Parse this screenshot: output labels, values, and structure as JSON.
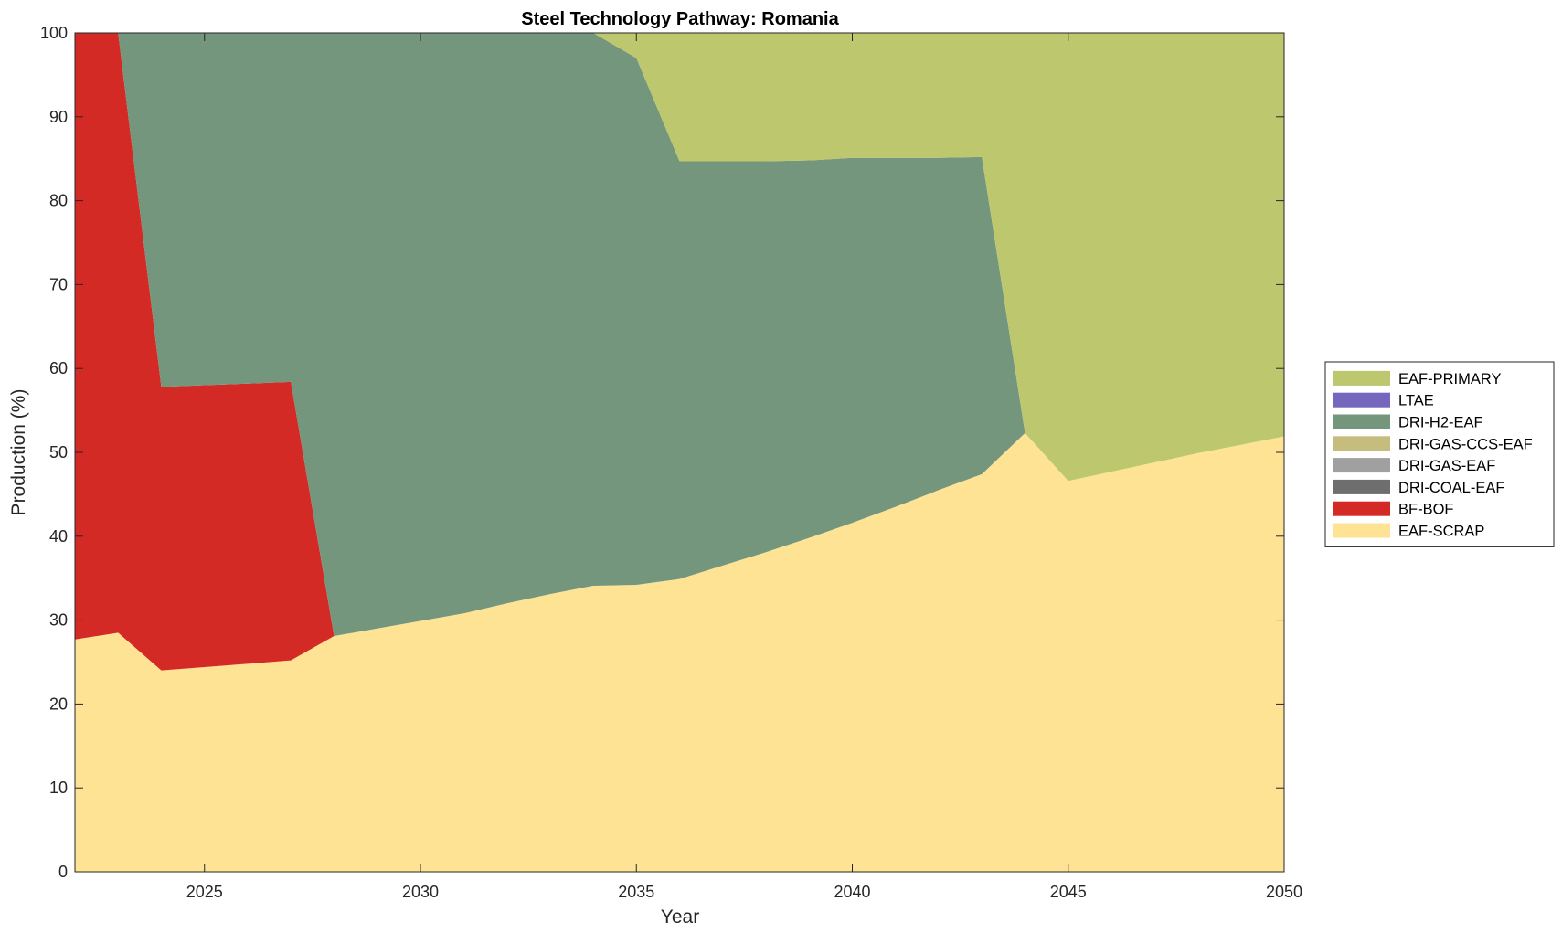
{
  "chart_data": {
    "type": "area",
    "stacked": true,
    "title": "Steel Technology Pathway: Romania",
    "xlabel": "Year",
    "ylabel": "Production (%)",
    "xlim": [
      2022,
      2050
    ],
    "ylim": [
      0,
      100
    ],
    "xticks": [
      2025,
      2030,
      2035,
      2040,
      2045,
      2050
    ],
    "yticks": [
      0,
      10,
      20,
      30,
      40,
      50,
      60,
      70,
      80,
      90,
      100
    ],
    "grid": false,
    "legend_position": "right",
    "x": [
      2022,
      2023,
      2024,
      2025,
      2026,
      2027,
      2028,
      2029,
      2030,
      2031,
      2032,
      2033,
      2034,
      2035,
      2036,
      2037,
      2038,
      2039,
      2040,
      2041,
      2042,
      2043,
      2044,
      2045,
      2046,
      2047,
      2048,
      2049,
      2050
    ],
    "series": [
      {
        "name": "EAF-SCRAP",
        "color": "#FDE393",
        "values": [
          27.7,
          28.5,
          24.0,
          24.4,
          24.8,
          25.2,
          28.1,
          29.0,
          29.9,
          30.8,
          32.0,
          33.1,
          34.1,
          34.2,
          34.9,
          36.5,
          38.1,
          39.8,
          41.6,
          43.5,
          45.5,
          47.4,
          52.3,
          46.6,
          47.7,
          48.8,
          49.9,
          50.9,
          51.9
        ]
      },
      {
        "name": "BF-BOF",
        "color": "#D42A26",
        "values": [
          72.3,
          71.5,
          33.8,
          33.6,
          33.4,
          33.2,
          0,
          0,
          0,
          0,
          0,
          0,
          0,
          0,
          0,
          0,
          0,
          0,
          0,
          0,
          0,
          0,
          0,
          0,
          0,
          0,
          0,
          0,
          0
        ]
      },
      {
        "name": "DRI-COAL-EAF",
        "color": "#6E6E6E",
        "values": [
          0,
          0,
          0,
          0,
          0,
          0,
          0,
          0,
          0,
          0,
          0,
          0,
          0,
          0,
          0,
          0,
          0,
          0,
          0,
          0,
          0,
          0,
          0,
          0,
          0,
          0,
          0,
          0,
          0
        ]
      },
      {
        "name": "DRI-GAS-EAF",
        "color": "#A0A0A0",
        "values": [
          0,
          0,
          0,
          0,
          0,
          0,
          0,
          0,
          0,
          0,
          0,
          0,
          0,
          0,
          0,
          0,
          0,
          0,
          0,
          0,
          0,
          0,
          0,
          0,
          0,
          0,
          0,
          0,
          0
        ]
      },
      {
        "name": "DRI-GAS-CCS-EAF",
        "color": "#C5BC7D",
        "values": [
          0,
          0,
          0,
          0,
          0,
          0,
          0,
          0,
          0,
          0,
          0,
          0,
          0,
          0,
          0,
          0,
          0,
          0,
          0,
          0,
          0,
          0,
          0,
          0,
          0,
          0,
          0,
          0,
          0
        ]
      },
      {
        "name": "DRI-H2-EAF",
        "color": "#74967C",
        "values": [
          0,
          0,
          42.2,
          42.0,
          41.8,
          41.6,
          71.9,
          71.0,
          70.1,
          69.2,
          68.0,
          66.9,
          65.9,
          62.8,
          49.8,
          48.2,
          46.6,
          45.0,
          43.5,
          41.6,
          39.6,
          37.8,
          0,
          0,
          0,
          0,
          0,
          0,
          0
        ]
      },
      {
        "name": "LTAE",
        "color": "#7467BD",
        "values": [
          0,
          0,
          0,
          0,
          0,
          0,
          0,
          0,
          0,
          0,
          0,
          0,
          0,
          0,
          0,
          0,
          0,
          0,
          0,
          0,
          0,
          0,
          0,
          0,
          0,
          0,
          0,
          0,
          0
        ]
      },
      {
        "name": "EAF-PRIMARY",
        "color": "#BDC76D",
        "values": [
          0,
          0,
          0,
          0,
          0,
          0,
          0,
          0,
          0,
          0,
          0,
          0,
          0,
          3.0,
          15.3,
          15.3,
          15.3,
          15.2,
          14.9,
          14.9,
          14.9,
          14.8,
          47.7,
          53.4,
          52.3,
          51.2,
          50.1,
          49.1,
          48.1
        ]
      }
    ],
    "legend_order": [
      "EAF-PRIMARY",
      "LTAE",
      "DRI-H2-EAF",
      "DRI-GAS-CCS-EAF",
      "DRI-GAS-EAF",
      "DRI-COAL-EAF",
      "BF-BOF",
      "EAF-SCRAP"
    ]
  }
}
